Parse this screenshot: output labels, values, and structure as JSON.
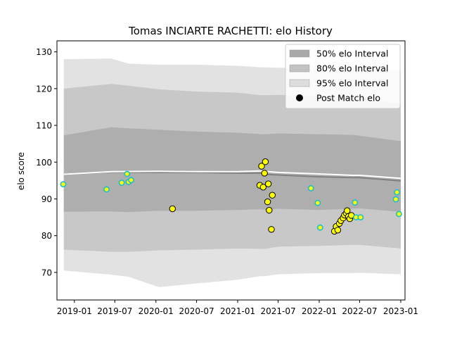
{
  "chart_data": {
    "type": "scatter",
    "title": "Tomas INCIARTE RACHETTI: elo History",
    "xlabel": "",
    "ylabel": "elo score",
    "xlim": [
      "2018-10-15",
      "2023-01-20"
    ],
    "ylim": [
      62.5,
      133
    ],
    "x_ticks": [
      "2019-01",
      "2019-07",
      "2020-01",
      "2020-07",
      "2021-01",
      "2021-07",
      "2022-01",
      "2022-07",
      "2023-01"
    ],
    "y_ticks": [
      70,
      80,
      90,
      100,
      110,
      120,
      130
    ],
    "grid": false,
    "legend": {
      "position": "top-right",
      "entries": [
        {
          "label": "50% elo Interval",
          "color": "#a9a9a9"
        },
        {
          "label": "80% elo Interval",
          "color": "#c3c3c3"
        },
        {
          "label": "95% elo Interval",
          "color": "#dddddd"
        },
        {
          "label": "Post Match elo",
          "color": "#000000"
        }
      ]
    },
    "colors": {
      "band50": "#a9a9a9",
      "band80": "#c3c3c3",
      "band95": "#dddddd",
      "median_line": "#808080",
      "mean_line": "#ffffff",
      "marker_face": "#ffff00",
      "marker_edge_dark": "#000000",
      "marker_edge_cyan": "#17becf"
    },
    "bands": {
      "dates": [
        "2018-11-15",
        "2019-06-15",
        "2019-09-01",
        "2020-01-15",
        "2020-07-01",
        "2021-01-01",
        "2021-04-15",
        "2021-05-05",
        "2021-07-01",
        "2022-01-01",
        "2022-06-01",
        "2022-07-01",
        "2023-01-01"
      ],
      "p50_low": [
        86.5,
        86.6,
        86.4,
        86.8,
        86.8,
        87.0,
        87.2,
        87.0,
        87.3,
        87.0,
        87.3,
        87.4,
        86.5
      ],
      "p50_high": [
        107.3,
        109.5,
        109.2,
        108.8,
        108.3,
        108.0,
        107.6,
        107.6,
        107.8,
        107.6,
        107.4,
        107.2,
        105.7
      ],
      "p80_low": [
        76.2,
        75.6,
        75.6,
        76.0,
        76.2,
        76.5,
        76.4,
        76.4,
        77.0,
        77.2,
        77.5,
        77.5,
        76.5
      ],
      "p80_high": [
        120.0,
        121.3,
        120.8,
        119.8,
        119.2,
        118.9,
        118.2,
        118.2,
        118.3,
        118.0,
        117.6,
        117.4,
        115.9
      ],
      "p95_low": [
        70.5,
        69.4,
        68.8,
        66.0,
        67.0,
        68.0,
        69.0,
        69.0,
        69.5,
        69.8,
        69.8,
        69.9,
        69.5
      ],
      "p95_high": [
        128.0,
        128.2,
        126.8,
        126.5,
        126.5,
        126.2,
        125.8,
        125.8,
        125.7,
        125.4,
        125.5,
        125.5,
        125.0
      ]
    },
    "lines": {
      "dates": [
        "2018-11-15",
        "2019-06-15",
        "2020-01-15",
        "2020-07-01",
        "2021-01-01",
        "2021-04-15",
        "2021-05-01",
        "2021-07-01",
        "2022-01-01",
        "2022-06-01",
        "2022-07-01",
        "2023-01-01"
      ],
      "median": [
        96.7,
        97.3,
        97.2,
        97.2,
        97.0,
        97.0,
        96.7,
        96.5,
        96.0,
        95.8,
        95.8,
        94.9
      ],
      "mean": [
        96.7,
        97.4,
        97.5,
        97.4,
        97.4,
        97.6,
        97.5,
        97.2,
        96.8,
        96.4,
        96.4,
        95.6
      ]
    },
    "points": [
      {
        "x": "2018-11-12",
        "y": 94.0,
        "edge": "cyan"
      },
      {
        "x": "2019-05-25",
        "y": 92.6,
        "edge": "cyan"
      },
      {
        "x": "2019-08-01",
        "y": 94.4,
        "edge": "cyan"
      },
      {
        "x": "2019-08-25",
        "y": 96.8,
        "edge": "cyan"
      },
      {
        "x": "2019-09-01",
        "y": 94.6,
        "edge": "cyan"
      },
      {
        "x": "2019-09-12",
        "y": 95.1,
        "edge": "cyan"
      },
      {
        "x": "2020-03-15",
        "y": 87.3,
        "edge": "dark"
      },
      {
        "x": "2021-04-10",
        "y": 93.7,
        "edge": "dark"
      },
      {
        "x": "2021-04-18",
        "y": 98.9,
        "edge": "dark"
      },
      {
        "x": "2021-04-25",
        "y": 93.2,
        "edge": "dark"
      },
      {
        "x": "2021-05-01",
        "y": 97.0,
        "edge": "dark"
      },
      {
        "x": "2021-05-05",
        "y": 100.1,
        "edge": "dark"
      },
      {
        "x": "2021-05-18",
        "y": 94.1,
        "edge": "dark"
      },
      {
        "x": "2021-05-15",
        "y": 89.2,
        "edge": "dark"
      },
      {
        "x": "2021-05-22",
        "y": 86.9,
        "edge": "dark"
      },
      {
        "x": "2021-06-05",
        "y": 91.0,
        "edge": "dark"
      },
      {
        "x": "2021-06-01",
        "y": 81.7,
        "edge": "dark"
      },
      {
        "x": "2021-11-25",
        "y": 92.9,
        "edge": "cyan"
      },
      {
        "x": "2021-12-25",
        "y": 88.9,
        "edge": "cyan"
      },
      {
        "x": "2022-01-05",
        "y": 82.2,
        "edge": "cyan"
      },
      {
        "x": "2022-03-10",
        "y": 81.2,
        "edge": "dark"
      },
      {
        "x": "2022-03-18",
        "y": 82.5,
        "edge": "dark"
      },
      {
        "x": "2022-03-25",
        "y": 81.5,
        "edge": "dark"
      },
      {
        "x": "2022-04-01",
        "y": 83.3,
        "edge": "dark"
      },
      {
        "x": "2022-04-08",
        "y": 84.1,
        "edge": "dark"
      },
      {
        "x": "2022-04-18",
        "y": 84.8,
        "edge": "dark"
      },
      {
        "x": "2022-04-24",
        "y": 85.6,
        "edge": "dark"
      },
      {
        "x": "2022-05-02",
        "y": 86.1,
        "edge": "dark"
      },
      {
        "x": "2022-05-06",
        "y": 86.8,
        "edge": "dark"
      },
      {
        "x": "2022-05-12",
        "y": 85.2,
        "edge": "dark"
      },
      {
        "x": "2022-05-18",
        "y": 84.6,
        "edge": "dark"
      },
      {
        "x": "2022-05-25",
        "y": 85.5,
        "edge": "dark"
      },
      {
        "x": "2022-06-10",
        "y": 89.0,
        "edge": "cyan"
      },
      {
        "x": "2022-06-15",
        "y": 85.0,
        "edge": "cyan"
      },
      {
        "x": "2022-07-05",
        "y": 85.0,
        "edge": "cyan"
      },
      {
        "x": "2022-12-10",
        "y": 89.9,
        "edge": "cyan"
      },
      {
        "x": "2022-12-15",
        "y": 91.8,
        "edge": "cyan"
      },
      {
        "x": "2022-12-24",
        "y": 85.9,
        "edge": "cyan"
      }
    ]
  }
}
